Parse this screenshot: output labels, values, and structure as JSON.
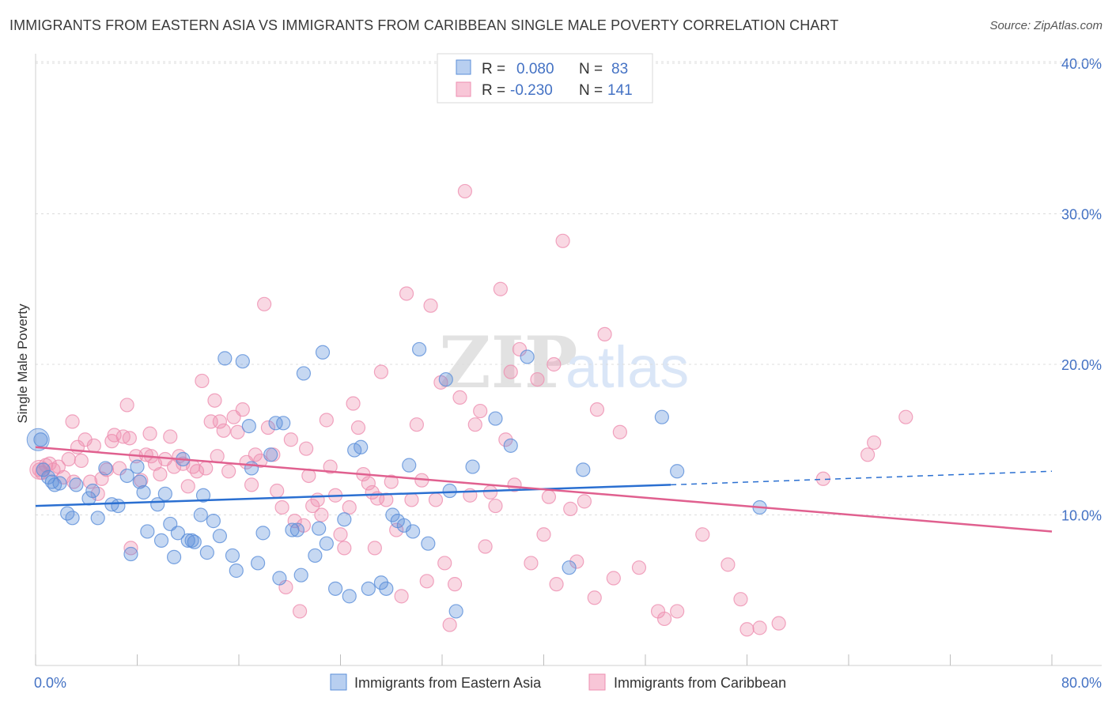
{
  "title": "IMMIGRANTS FROM EASTERN ASIA VS IMMIGRANTS FROM CARIBBEAN SINGLE MALE POVERTY CORRELATION CHART",
  "source": "Source: ZipAtlas.com",
  "colors": {
    "blue": "#5b8fd9",
    "blue_line": "#2a6fd1",
    "pink": "#ee8fb0",
    "pink_line": "#e0608f",
    "tick_text": "#4472c4"
  },
  "legend": {
    "r_label": "R =",
    "n_label": "N =",
    "rows": [
      {
        "r": "0.080",
        "n": "83"
      },
      {
        "r": "-0.230",
        "n": "141"
      }
    ]
  },
  "chart_data": {
    "type": "scatter",
    "title": "IMMIGRANTS FROM EASTERN ASIA VS IMMIGRANTS FROM CARIBBEAN SINGLE MALE POVERTY CORRELATION CHART",
    "xlabel": "",
    "ylabel": "Single Male Poverty",
    "xlim": [
      0,
      80
    ],
    "ylim": [
      0,
      40
    ],
    "x_tick_labels": [
      "0.0%",
      "80.0%"
    ],
    "y_ticks": [
      10,
      20,
      30,
      40
    ],
    "y_tick_labels": [
      "10.0%",
      "20.0%",
      "30.0%",
      "40.0%"
    ],
    "grid": true,
    "legend_position": "top-center",
    "series": [
      {
        "name": "Immigrants from Eastern Asia",
        "color": "#5b8fd9",
        "trend": {
          "x": [
            0,
            50
          ],
          "y": [
            10.6,
            12.0
          ],
          "dashed_to": [
            80,
            12.9
          ]
        },
        "points": [
          [
            0.4,
            15.0
          ],
          [
            0.6,
            13.0
          ],
          [
            1.0,
            12.5
          ],
          [
            1.3,
            12.2
          ],
          [
            1.5,
            12.0
          ],
          [
            1.9,
            12.1
          ],
          [
            2.5,
            10.1
          ],
          [
            2.9,
            9.8
          ],
          [
            3.2,
            12.0
          ],
          [
            4.2,
            11.1
          ],
          [
            4.5,
            11.6
          ],
          [
            4.9,
            9.8
          ],
          [
            5.5,
            13.1
          ],
          [
            6.0,
            10.7
          ],
          [
            6.5,
            10.6
          ],
          [
            7.2,
            12.6
          ],
          [
            7.5,
            7.4
          ],
          [
            8.0,
            13.2
          ],
          [
            8.2,
            12.2
          ],
          [
            8.5,
            11.5
          ],
          [
            8.8,
            8.9
          ],
          [
            9.6,
            10.7
          ],
          [
            9.9,
            8.3
          ],
          [
            10.2,
            11.4
          ],
          [
            10.6,
            9.4
          ],
          [
            10.9,
            7.2
          ],
          [
            11.2,
            8.8
          ],
          [
            11.6,
            13.7
          ],
          [
            12.0,
            8.3
          ],
          [
            12.3,
            8.3
          ],
          [
            12.5,
            8.2
          ],
          [
            13.0,
            10.0
          ],
          [
            13.2,
            11.3
          ],
          [
            13.5,
            7.5
          ],
          [
            14.0,
            9.6
          ],
          [
            14.5,
            8.6
          ],
          [
            14.9,
            20.4
          ],
          [
            15.5,
            7.3
          ],
          [
            15.8,
            6.3
          ],
          [
            16.3,
            20.2
          ],
          [
            16.8,
            15.9
          ],
          [
            17.0,
            13.1
          ],
          [
            17.5,
            6.8
          ],
          [
            17.9,
            8.8
          ],
          [
            18.5,
            14.0
          ],
          [
            18.9,
            16.1
          ],
          [
            19.2,
            5.8
          ],
          [
            19.5,
            16.1
          ],
          [
            20.2,
            9.0
          ],
          [
            20.6,
            9.0
          ],
          [
            20.9,
            6.0
          ],
          [
            21.1,
            19.4
          ],
          [
            22.0,
            7.3
          ],
          [
            22.3,
            9.1
          ],
          [
            22.6,
            20.8
          ],
          [
            22.9,
            8.1
          ],
          [
            23.6,
            5.1
          ],
          [
            24.3,
            9.7
          ],
          [
            24.7,
            4.6
          ],
          [
            25.1,
            14.3
          ],
          [
            25.6,
            14.5
          ],
          [
            26.2,
            5.1
          ],
          [
            27.2,
            5.5
          ],
          [
            27.6,
            5.1
          ],
          [
            28.1,
            10.0
          ],
          [
            28.5,
            9.6
          ],
          [
            29.0,
            9.3
          ],
          [
            29.4,
            13.3
          ],
          [
            29.7,
            8.9
          ],
          [
            30.2,
            21.0
          ],
          [
            30.9,
            8.1
          ],
          [
            32.3,
            19.0
          ],
          [
            32.6,
            11.6
          ],
          [
            33.1,
            3.6
          ],
          [
            34.4,
            13.2
          ],
          [
            36.2,
            16.4
          ],
          [
            37.4,
            14.6
          ],
          [
            38.7,
            20.5
          ],
          [
            42.0,
            6.5
          ],
          [
            43.1,
            13.0
          ],
          [
            49.3,
            16.5
          ],
          [
            50.5,
            12.9
          ],
          [
            57.0,
            10.5
          ]
        ]
      },
      {
        "name": "Immigrants from Caribbean",
        "color": "#ee8fb0",
        "trend": {
          "x": [
            0,
            80
          ],
          "y": [
            14.5,
            8.9
          ]
        },
        "points": [
          [
            0.3,
            13.0
          ],
          [
            0.5,
            12.8
          ],
          [
            0.8,
            13.3
          ],
          [
            1.1,
            13.4
          ],
          [
            1.4,
            13.0
          ],
          [
            1.8,
            13.2
          ],
          [
            2.2,
            12.5
          ],
          [
            2.6,
            13.7
          ],
          [
            2.9,
            16.2
          ],
          [
            3.3,
            14.5
          ],
          [
            3.6,
            13.6
          ],
          [
            3.9,
            15.0
          ],
          [
            4.3,
            12.2
          ],
          [
            4.6,
            14.6
          ],
          [
            4.9,
            11.4
          ],
          [
            5.2,
            12.4
          ],
          [
            5.6,
            13.0
          ],
          [
            6.0,
            14.9
          ],
          [
            6.2,
            15.3
          ],
          [
            6.6,
            13.1
          ],
          [
            6.9,
            15.2
          ],
          [
            7.2,
            17.3
          ],
          [
            7.5,
            7.8
          ],
          [
            7.9,
            13.9
          ],
          [
            8.3,
            12.3
          ],
          [
            8.7,
            14.0
          ],
          [
            9.0,
            15.4
          ],
          [
            9.4,
            13.4
          ],
          [
            9.8,
            12.7
          ],
          [
            10.2,
            13.7
          ],
          [
            10.6,
            15.2
          ],
          [
            10.9,
            13.2
          ],
          [
            11.3,
            13.9
          ],
          [
            11.6,
            13.4
          ],
          [
            12.0,
            11.9
          ],
          [
            12.4,
            13.2
          ],
          [
            12.7,
            12.9
          ],
          [
            13.1,
            18.9
          ],
          [
            13.4,
            13.1
          ],
          [
            13.8,
            16.2
          ],
          [
            14.1,
            17.6
          ],
          [
            14.5,
            16.2
          ],
          [
            14.8,
            15.6
          ],
          [
            15.2,
            12.9
          ],
          [
            15.6,
            16.5
          ],
          [
            15.9,
            15.5
          ],
          [
            16.3,
            17.0
          ],
          [
            16.6,
            13.5
          ],
          [
            17.0,
            12.0
          ],
          [
            17.3,
            14.0
          ],
          [
            17.7,
            13.6
          ],
          [
            18.0,
            24.0
          ],
          [
            18.3,
            15.8
          ],
          [
            18.7,
            14.0
          ],
          [
            19.0,
            11.6
          ],
          [
            19.4,
            10.5
          ],
          [
            19.7,
            5.2
          ],
          [
            20.1,
            15.0
          ],
          [
            20.4,
            9.6
          ],
          [
            20.8,
            3.6
          ],
          [
            21.1,
            9.3
          ],
          [
            21.5,
            12.6
          ],
          [
            21.8,
            10.6
          ],
          [
            22.2,
            11.0
          ],
          [
            22.5,
            10.0
          ],
          [
            22.9,
            16.3
          ],
          [
            23.2,
            13.2
          ],
          [
            23.6,
            11.3
          ],
          [
            24.0,
            8.7
          ],
          [
            24.3,
            7.8
          ],
          [
            24.7,
            10.5
          ],
          [
            25.0,
            17.4
          ],
          [
            25.4,
            15.8
          ],
          [
            25.8,
            12.7
          ],
          [
            26.2,
            12.1
          ],
          [
            26.5,
            11.5
          ],
          [
            26.9,
            11.1
          ],
          [
            27.2,
            19.5
          ],
          [
            27.6,
            11.0
          ],
          [
            28.0,
            12.2
          ],
          [
            28.4,
            9.0
          ],
          [
            28.8,
            4.6
          ],
          [
            29.2,
            24.7
          ],
          [
            29.6,
            11.0
          ],
          [
            30.0,
            16.0
          ],
          [
            30.4,
            12.3
          ],
          [
            30.8,
            5.6
          ],
          [
            31.1,
            23.9
          ],
          [
            31.5,
            11.0
          ],
          [
            31.9,
            18.8
          ],
          [
            32.2,
            6.8
          ],
          [
            32.6,
            2.7
          ],
          [
            33.0,
            5.4
          ],
          [
            33.4,
            17.8
          ],
          [
            33.8,
            31.5
          ],
          [
            34.2,
            11.3
          ],
          [
            34.6,
            16.0
          ],
          [
            35.0,
            16.9
          ],
          [
            35.4,
            7.9
          ],
          [
            35.8,
            11.5
          ],
          [
            36.2,
            10.6
          ],
          [
            36.6,
            25.0
          ],
          [
            37.0,
            15.0
          ],
          [
            37.4,
            19.5
          ],
          [
            37.7,
            12.0
          ],
          [
            38.1,
            21.0
          ],
          [
            39.0,
            6.8
          ],
          [
            39.5,
            19.0
          ],
          [
            40.0,
            8.7
          ],
          [
            40.4,
            11.2
          ],
          [
            41.0,
            5.4
          ],
          [
            41.5,
            28.2
          ],
          [
            42.1,
            10.4
          ],
          [
            42.6,
            6.9
          ],
          [
            43.2,
            10.9
          ],
          [
            44.0,
            4.5
          ],
          [
            44.8,
            22.0
          ],
          [
            45.5,
            5.8
          ],
          [
            46.0,
            15.5
          ],
          [
            47.5,
            6.5
          ],
          [
            49.0,
            3.6
          ],
          [
            49.5,
            3.1
          ],
          [
            50.5,
            3.6
          ],
          [
            52.5,
            8.7
          ],
          [
            54.5,
            6.7
          ],
          [
            55.5,
            4.4
          ],
          [
            56.0,
            2.4
          ],
          [
            57.0,
            2.5
          ],
          [
            58.5,
            2.8
          ],
          [
            62.0,
            12.4
          ],
          [
            65.5,
            14.0
          ],
          [
            66.0,
            14.8
          ],
          [
            68.5,
            16.5
          ],
          [
            9.1,
            13.9
          ],
          [
            3.0,
            12.2
          ],
          [
            14.3,
            13.9
          ],
          [
            21.3,
            14.4
          ],
          [
            26.7,
            7.8
          ],
          [
            40.8,
            20.0
          ],
          [
            44.2,
            17.0
          ],
          [
            7.4,
            15.1
          ]
        ]
      }
    ]
  },
  "bottom_legend": [
    "Immigrants from Eastern Asia",
    "Immigrants from Caribbean"
  ],
  "watermark": {
    "zip": "ZIP",
    "atlas": "atlas"
  }
}
